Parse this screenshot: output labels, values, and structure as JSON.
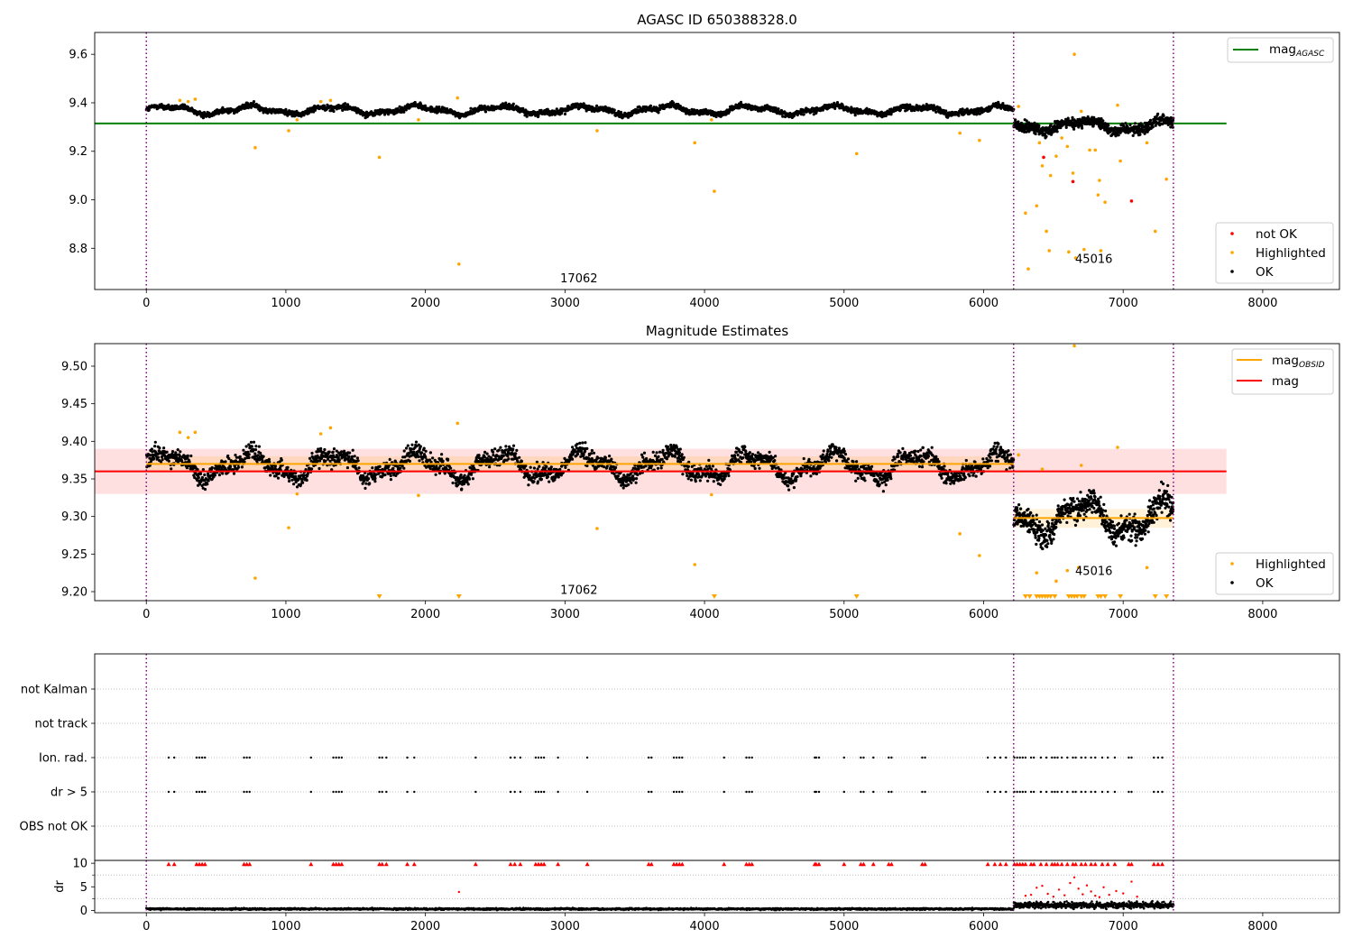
{
  "chart_data": [
    {
      "type": "scatter",
      "title": "AGASC ID 650388328.0",
      "xlim": [
        -370,
        8550
      ],
      "ylim": [
        8.63,
        9.69
      ],
      "xticks": [
        0,
        1000,
        2000,
        3000,
        4000,
        5000,
        6000,
        7000,
        8000
      ],
      "yticks": [
        8.8,
        9.0,
        9.2,
        9.4,
        9.6
      ],
      "ytick_labels": [
        "8.8",
        "9.0",
        "9.2",
        "9.4",
        "9.6"
      ],
      "obsid_boundaries": [
        0,
        6215,
        7360
      ],
      "obsid_labels": [
        {
          "x": 3100,
          "y": 8.66,
          "text": "17062"
        },
        {
          "x": 6790,
          "y": 8.74,
          "text": "45016"
        }
      ],
      "lines": [
        {
          "name": "mag",
          "sub": "AGASC",
          "color": "#008000",
          "x": [
            -370,
            7740
          ],
          "y": [
            9.315,
            9.315
          ]
        }
      ],
      "segments": [
        {
          "x0": 0,
          "x1": 6215,
          "base": 9.37,
          "amp": 0.015,
          "noise": 0.008,
          "n": 2600
        },
        {
          "x0": 6215,
          "x1": 7360,
          "base": 9.305,
          "amp": 0.02,
          "noise": 0.015,
          "n": 650
        }
      ],
      "highlighted": [
        [
          240,
          9.41
        ],
        [
          300,
          9.405
        ],
        [
          350,
          9.415
        ],
        [
          780,
          9.215
        ],
        [
          1020,
          9.285
        ],
        [
          1080,
          9.33
        ],
        [
          1250,
          9.405
        ],
        [
          1320,
          9.41
        ],
        [
          1670,
          9.175
        ],
        [
          1950,
          9.33
        ],
        [
          2230,
          9.42
        ],
        [
          2240,
          8.735
        ],
        [
          3230,
          9.285
        ],
        [
          3930,
          9.235
        ],
        [
          4050,
          9.33
        ],
        [
          4070,
          9.035
        ],
        [
          5090,
          9.19
        ],
        [
          5830,
          9.275
        ],
        [
          5970,
          9.245
        ],
        [
          6250,
          9.385
        ],
        [
          6300,
          8.945
        ],
        [
          6320,
          8.715
        ],
        [
          6380,
          8.975
        ],
        [
          6420,
          9.14
        ],
        [
          6450,
          8.87
        ],
        [
          6470,
          8.79
        ],
        [
          6520,
          9.18
        ],
        [
          6560,
          9.255
        ],
        [
          6610,
          8.785
        ],
        [
          6640,
          9.11
        ],
        [
          6660,
          8.76
        ],
        [
          6700,
          9.365
        ],
        [
          6720,
          8.795
        ],
        [
          6760,
          9.205
        ],
        [
          6820,
          9.02
        ],
        [
          6840,
          8.79
        ],
        [
          6870,
          8.99
        ],
        [
          6960,
          9.39
        ],
        [
          6980,
          9.16
        ],
        [
          7170,
          9.235
        ],
        [
          7230,
          8.87
        ],
        [
          7310,
          9.085
        ],
        [
          6400,
          9.235
        ],
        [
          6480,
          9.1
        ],
        [
          6600,
          9.22
        ],
        [
          6650,
          9.6
        ],
        [
          6800,
          9.205
        ],
        [
          6830,
          9.08
        ]
      ],
      "not_ok": [
        [
          6430,
          9.175
        ],
        [
          6640,
          9.075
        ],
        [
          7060,
          8.995
        ]
      ],
      "legend_main": {
        "entries": [
          "mag"
        ],
        "sub": "AGASC"
      },
      "legend_points": {
        "entries": [
          "not OK",
          "Highlighted",
          "OK"
        ]
      },
      "colors": {
        "ok": "#000000",
        "highlighted": "#ffa500",
        "not_ok": "#ff0000",
        "boundary": "#800080"
      }
    },
    {
      "type": "scatter",
      "title": "Magnitude Estimates",
      "xlim": [
        -370,
        8550
      ],
      "ylim": [
        9.188,
        9.53
      ],
      "xticks": [
        0,
        1000,
        2000,
        3000,
        4000,
        5000,
        6000,
        7000,
        8000
      ],
      "yticks": [
        9.2,
        9.25,
        9.3,
        9.35,
        9.4,
        9.45,
        9.5
      ],
      "ytick_labels": [
        "9.20",
        "9.25",
        "9.30",
        "9.35",
        "9.40",
        "9.45",
        "9.50"
      ],
      "obsid_boundaries": [
        0,
        6215,
        7360
      ],
      "obsid_labels": [
        {
          "x": 3100,
          "y": 9.197,
          "text": "17062"
        },
        {
          "x": 6790,
          "y": 9.222,
          "text": "45016"
        }
      ],
      "band": {
        "x": [
          -370,
          7740
        ],
        "y0": 9.33,
        "y1": 9.39,
        "color": "#ffcccc"
      },
      "obsid_bands": [
        {
          "x": [
            0,
            6215
          ],
          "y0": 9.36,
          "y1": 9.38
        },
        {
          "x": [
            6215,
            7360
          ],
          "y0": 9.285,
          "y1": 9.31
        }
      ],
      "lines": [
        {
          "name": "mag",
          "sub": "OBSID",
          "color": "#ffa500",
          "x": [
            0,
            6215
          ],
          "y": [
            9.37,
            9.37
          ]
        },
        {
          "name": "mag",
          "sub": "OBSID",
          "color": "#ffa500",
          "x": [
            6215,
            7360
          ],
          "y": [
            9.298,
            9.298
          ]
        },
        {
          "name": "mag",
          "sub": "",
          "color": "#ff0000",
          "x": [
            -370,
            7740
          ],
          "y": [
            9.36,
            9.36
          ]
        }
      ],
      "segments": [
        {
          "x0": 0,
          "x1": 6215,
          "base": 9.368,
          "amp": 0.015,
          "noise": 0.008,
          "n": 2600
        },
        {
          "x0": 6215,
          "x1": 7360,
          "base": 9.298,
          "amp": 0.02,
          "noise": 0.012,
          "n": 650
        }
      ],
      "highlighted": [
        [
          240,
          9.412
        ],
        [
          300,
          9.405
        ],
        [
          350,
          9.412
        ],
        [
          780,
          9.218
        ],
        [
          1020,
          9.285
        ],
        [
          1080,
          9.33
        ],
        [
          1250,
          9.41
        ],
        [
          1320,
          9.418
        ],
        [
          1950,
          9.328
        ],
        [
          2230,
          9.424
        ],
        [
          3230,
          9.284
        ],
        [
          3930,
          9.236
        ],
        [
          4050,
          9.329
        ],
        [
          5830,
          9.277
        ],
        [
          5970,
          9.248
        ],
        [
          6250,
          9.382
        ],
        [
          6420,
          9.363
        ],
        [
          6700,
          9.368
        ],
        [
          6960,
          9.392
        ],
        [
          6380,
          9.225
        ],
        [
          6520,
          9.214
        ],
        [
          6600,
          9.228
        ],
        [
          6680,
          9.232
        ],
        [
          7170,
          9.232
        ],
        [
          6650,
          9.527
        ]
      ],
      "highlighted_floor": [
        1670,
        2240,
        4070,
        5090,
        6300,
        6330,
        6380,
        6400,
        6420,
        6440,
        6460,
        6480,
        6510,
        6610,
        6630,
        6650,
        6670,
        6700,
        6720,
        6820,
        6840,
        6870,
        6980,
        7230,
        7310
      ],
      "legend_main": {
        "entries": [
          "mag",
          "mag"
        ],
        "sub": "OBSID"
      },
      "legend_points": {
        "entries": [
          "Highlighted",
          "OK"
        ]
      },
      "colors": {
        "ok": "#000000",
        "highlighted": "#ffa500",
        "boundary": "#800080"
      }
    },
    {
      "type": "scatter",
      "title": "",
      "xlim": [
        -370,
        8550
      ],
      "categories": [
        "not Kalman",
        "not track",
        "Ion. rad.",
        "dr > 5",
        "OBS not OK"
      ],
      "obsid_boundaries": [
        0,
        6215,
        7360
      ],
      "flag_x": [
        160,
        200,
        360,
        380,
        400,
        420,
        700,
        720,
        740,
        1180,
        1340,
        1360,
        1380,
        1400,
        1670,
        1690,
        1720,
        1870,
        1920,
        2360,
        2610,
        2640,
        2680,
        2790,
        2810,
        2830,
        2850,
        2950,
        3160,
        3600,
        3620,
        3780,
        3800,
        3820,
        3840,
        4140,
        4300,
        4320,
        4340,
        4790,
        4800,
        4820,
        5000,
        5120,
        5140,
        5210,
        5320,
        5340,
        5560,
        5580,
        6030,
        6080,
        6120,
        6160,
        6220,
        6240,
        6260,
        6280,
        6300,
        6340,
        6360,
        6410,
        6450,
        6490,
        6510,
        6530,
        6560,
        6600,
        6640,
        6660,
        6700,
        6730,
        6770,
        6800,
        6850,
        6890,
        6940,
        7040,
        7060,
        7220,
        7250,
        7280
      ]
    },
    {
      "type": "scatter",
      "title": "",
      "ylabel": "dr",
      "xlim": [
        -370,
        8550
      ],
      "ylim": [
        -0.5,
        10.6
      ],
      "xticks": [
        0,
        1000,
        2000,
        3000,
        4000,
        5000,
        6000,
        7000,
        8000
      ],
      "yticks": [
        0,
        5,
        10
      ],
      "ytick_labels": [
        "0",
        "5",
        "10"
      ],
      "obsid_boundaries": [
        0,
        6215,
        7360
      ],
      "segments": [
        {
          "x0": 0,
          "x1": 6215,
          "base": 0.3,
          "noise": 0.12,
          "n": 2600
        },
        {
          "x0": 6215,
          "x1": 7360,
          "base": 1.1,
          "noise": 0.45,
          "n": 650
        }
      ],
      "red_points": [
        [
          2240,
          3.9
        ],
        [
          6300,
          3.1
        ],
        [
          6340,
          3.3
        ],
        [
          6380,
          4.8
        ],
        [
          6420,
          5.2
        ],
        [
          6460,
          3.5
        ],
        [
          6500,
          2.9
        ],
        [
          6540,
          4.4
        ],
        [
          6580,
          3.2
        ],
        [
          6620,
          5.8
        ],
        [
          6650,
          7.0
        ],
        [
          6680,
          4.6
        ],
        [
          6710,
          3.4
        ],
        [
          6740,
          5.3
        ],
        [
          6770,
          4.0
        ],
        [
          6800,
          3.1
        ],
        [
          6830,
          2.8
        ],
        [
          6860,
          4.9
        ],
        [
          6900,
          3.3
        ],
        [
          6950,
          4.1
        ],
        [
          7000,
          3.6
        ],
        [
          7060,
          6.1
        ],
        [
          7100,
          2.9
        ]
      ],
      "red_top_x": [
        160,
        200,
        360,
        380,
        400,
        420,
        700,
        720,
        740,
        1180,
        1340,
        1360,
        1380,
        1400,
        1670,
        1690,
        1720,
        1870,
        1920,
        2360,
        2610,
        2640,
        2680,
        2790,
        2810,
        2830,
        2850,
        2950,
        3160,
        3600,
        3620,
        3780,
        3800,
        3820,
        3840,
        4140,
        4300,
        4320,
        4340,
        4790,
        4800,
        4820,
        5000,
        5120,
        5140,
        5210,
        5320,
        5340,
        5560,
        5580,
        6030,
        6080,
        6120,
        6160,
        6220,
        6240,
        6260,
        6280,
        6300,
        6340,
        6360,
        6410,
        6450,
        6490,
        6510,
        6530,
        6560,
        6600,
        6640,
        6660,
        6700,
        6730,
        6770,
        6800,
        6850,
        6890,
        6940,
        7040,
        7060,
        7220,
        7250,
        7280
      ],
      "colors": {
        "ok": "#000000",
        "red": "#ff0000",
        "boundary": "#800080"
      }
    }
  ]
}
